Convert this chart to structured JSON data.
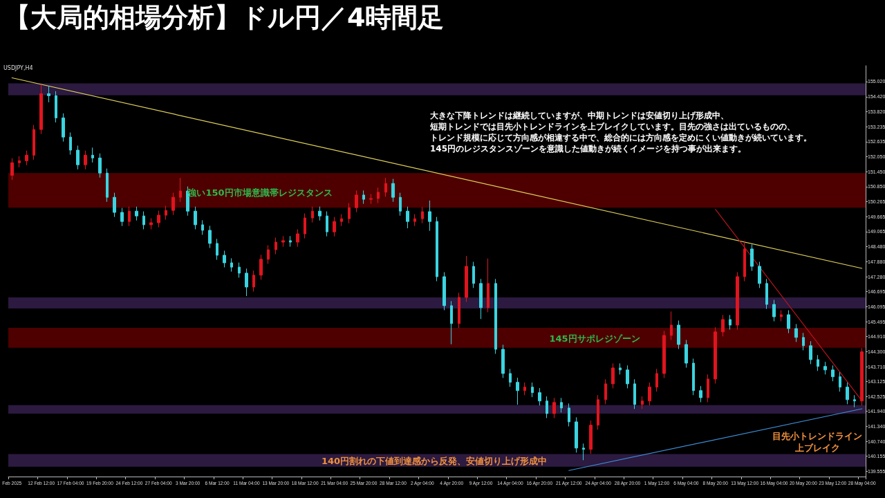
{
  "chart_data": {
    "type": "candlestick",
    "title": "【大局的相場分析】ドル円／4時間足",
    "categories": [
      "Feb 2025",
      null,
      null,
      null,
      "12 Feb 12:00",
      null,
      null,
      null,
      "17 Feb 04:00",
      null,
      null,
      null,
      "19 Feb 20:00",
      null,
      null,
      null,
      "24 Feb 12:00",
      null,
      null,
      null,
      "27 Feb 04:00",
      null,
      null,
      null,
      "3 Mar 20:00",
      null,
      null,
      null,
      "6 Mar 12:00",
      null,
      null,
      null,
      "11 Mar 04:00",
      null,
      null,
      null,
      "13 Mar 20:00",
      null,
      null,
      null,
      "18 Mar 12:00",
      null,
      null,
      null,
      "21 Mar 04:00",
      null,
      null,
      null,
      "25 Mar 20:00",
      null,
      null,
      null,
      "28 Mar 12:00",
      null,
      null,
      null,
      "2 Apr 04:00",
      null,
      null,
      null,
      "4 Apr 20:00",
      null,
      null,
      null,
      "9 Apr 12:00",
      null,
      null,
      null,
      "14 Apr 04:00",
      null,
      null,
      null,
      "16 Apr 20:00",
      null,
      null,
      null,
      "21 Apr 12:00",
      null,
      null,
      null,
      "24 Apr 04:00",
      null,
      null,
      null,
      "28 Apr 20:00",
      null,
      null,
      null,
      "1 May 12:00",
      null,
      null,
      null,
      "6 May 04:00",
      null,
      null,
      null,
      "8 May 20:00",
      null,
      null,
      null,
      "13 May 12:00",
      null,
      null,
      null,
      "16 May 04:00",
      null,
      null,
      null,
      "20 May 20:00",
      null,
      null,
      null,
      "23 May 12:00",
      null,
      null,
      null,
      "28 May 04:00"
    ],
    "ohlc": [
      [
        151.3,
        151.98,
        151.12,
        151.8
      ],
      [
        151.8,
        152.06,
        151.62,
        151.88
      ],
      [
        151.88,
        152.28,
        151.7,
        152.1
      ],
      [
        152.1,
        153.3,
        151.92,
        153.12
      ],
      [
        153.12,
        154.9,
        152.94,
        154.54
      ],
      [
        154.54,
        154.85,
        154.2,
        154.46
      ],
      [
        154.46,
        154.64,
        153.4,
        153.58
      ],
      [
        153.58,
        153.76,
        152.64,
        152.82
      ],
      [
        152.82,
        153.0,
        152.12,
        152.3
      ],
      [
        152.3,
        152.48,
        151.54,
        151.72
      ],
      [
        151.72,
        152.28,
        151.54,
        152.1
      ],
      [
        152.1,
        152.4,
        151.81,
        151.99
      ],
      [
        151.99,
        152.17,
        151.21,
        151.39
      ],
      [
        151.39,
        151.57,
        150.25,
        150.43
      ],
      [
        150.43,
        150.61,
        149.65,
        149.83
      ],
      [
        149.83,
        150.01,
        149.29,
        149.47
      ],
      [
        149.47,
        150.06,
        149.29,
        149.88
      ],
      [
        149.88,
        150.06,
        149.51,
        149.69
      ],
      [
        149.69,
        149.87,
        149.16,
        149.34
      ],
      [
        149.34,
        149.6,
        149.16,
        149.42
      ],
      [
        149.42,
        149.9,
        149.24,
        149.72
      ],
      [
        149.72,
        150.09,
        149.54,
        149.91
      ],
      [
        149.91,
        150.61,
        149.73,
        150.43
      ],
      [
        150.43,
        151.2,
        150.25,
        150.68
      ],
      [
        150.68,
        150.86,
        149.7,
        149.88
      ],
      [
        149.88,
        150.06,
        149.16,
        149.34
      ],
      [
        149.34,
        149.52,
        148.94,
        149.12
      ],
      [
        149.12,
        149.3,
        148.42,
        148.6
      ],
      [
        148.6,
        148.78,
        147.95,
        148.13
      ],
      [
        148.13,
        148.31,
        147.65,
        147.83
      ],
      [
        147.83,
        148.01,
        147.48,
        147.66
      ],
      [
        147.66,
        147.84,
        147.24,
        147.42
      ],
      [
        147.42,
        147.6,
        146.51,
        146.87
      ],
      [
        146.87,
        147.52,
        146.69,
        147.34
      ],
      [
        147.34,
        148.15,
        147.16,
        147.97
      ],
      [
        147.97,
        148.53,
        147.79,
        148.35
      ],
      [
        148.35,
        148.83,
        148.17,
        148.65
      ],
      [
        148.65,
        148.89,
        148.47,
        148.71
      ],
      [
        148.71,
        148.89,
        148.47,
        148.65
      ],
      [
        148.65,
        149.16,
        148.47,
        148.98
      ],
      [
        148.98,
        149.79,
        148.8,
        149.61
      ],
      [
        149.61,
        150.06,
        149.43,
        149.88
      ],
      [
        149.88,
        150.06,
        149.51,
        149.69
      ],
      [
        149.69,
        149.87,
        148.88,
        149.06
      ],
      [
        149.06,
        149.65,
        148.88,
        149.47
      ],
      [
        149.47,
        149.76,
        149.29,
        149.58
      ],
      [
        149.58,
        150.2,
        149.4,
        150.02
      ],
      [
        150.02,
        150.7,
        149.84,
        150.52
      ],
      [
        150.52,
        150.7,
        150.17,
        150.35
      ],
      [
        150.35,
        150.56,
        150.17,
        150.38
      ],
      [
        150.38,
        150.81,
        150.2,
        150.63
      ],
      [
        150.63,
        151.2,
        150.45,
        150.98
      ],
      [
        150.98,
        151.16,
        150.25,
        150.43
      ],
      [
        150.43,
        150.61,
        149.7,
        149.88
      ],
      [
        149.88,
        150.06,
        149.2,
        149.47
      ],
      [
        149.47,
        149.76,
        149.29,
        149.58
      ],
      [
        149.58,
        150.04,
        149.4,
        149.86
      ],
      [
        149.86,
        150.3,
        149.1,
        149.47
      ],
      [
        149.47,
        149.65,
        147.1,
        147.28
      ],
      [
        147.28,
        147.46,
        145.95,
        146.13
      ],
      [
        146.13,
        146.31,
        144.6,
        145.42
      ],
      [
        145.42,
        146.64,
        145.24,
        146.46
      ],
      [
        146.46,
        148.1,
        146.28,
        147.69
      ],
      [
        147.69,
        147.87,
        146.83,
        147.01
      ],
      [
        147.01,
        147.19,
        145.6,
        146.05
      ],
      [
        146.05,
        148.0,
        145.87,
        147.01
      ],
      [
        147.01,
        147.19,
        144.22,
        144.4
      ],
      [
        144.4,
        144.58,
        143.26,
        143.44
      ],
      [
        143.44,
        143.62,
        142.91,
        143.09
      ],
      [
        143.09,
        143.27,
        142.2,
        142.76
      ],
      [
        142.76,
        143.08,
        142.58,
        142.9
      ],
      [
        142.9,
        143.08,
        142.5,
        142.68
      ],
      [
        142.68,
        142.86,
        142.17,
        142.35
      ],
      [
        142.35,
        142.53,
        141.67,
        141.85
      ],
      [
        141.85,
        142.47,
        141.67,
        142.29
      ],
      [
        142.29,
        142.47,
        141.89,
        142.07
      ],
      [
        142.07,
        142.25,
        141.34,
        141.52
      ],
      [
        141.52,
        141.7,
        140.3,
        140.48
      ],
      [
        140.48,
        140.66,
        140.0,
        140.43
      ],
      [
        140.43,
        141.57,
        140.25,
        141.39
      ],
      [
        141.39,
        142.58,
        141.21,
        142.4
      ],
      [
        142.4,
        143.21,
        142.22,
        143.03
      ],
      [
        143.03,
        143.84,
        142.85,
        143.66
      ],
      [
        143.66,
        143.84,
        143.4,
        143.58
      ],
      [
        143.58,
        143.76,
        142.85,
        143.03
      ],
      [
        143.03,
        143.21,
        142.03,
        142.21
      ],
      [
        142.21,
        142.53,
        142.03,
        142.35
      ],
      [
        142.35,
        143.08,
        142.17,
        142.9
      ],
      [
        142.9,
        143.62,
        142.72,
        143.44
      ],
      [
        143.44,
        145.13,
        143.26,
        144.95
      ],
      [
        144.95,
        145.9,
        144.77,
        145.36
      ],
      [
        145.36,
        145.54,
        144.41,
        144.59
      ],
      [
        144.59,
        144.77,
        143.67,
        143.85
      ],
      [
        143.85,
        144.03,
        142.58,
        142.76
      ],
      [
        142.76,
        142.94,
        142.3,
        142.48
      ],
      [
        142.48,
        143.4,
        142.3,
        143.22
      ],
      [
        143.22,
        145.27,
        143.04,
        145.09
      ],
      [
        145.09,
        145.76,
        144.91,
        145.58
      ],
      [
        145.58,
        145.76,
        145.18,
        145.36
      ],
      [
        145.36,
        147.46,
        145.18,
        147.28
      ],
      [
        147.28,
        148.7,
        147.1,
        148.38
      ],
      [
        148.38,
        148.56,
        147.51,
        147.69
      ],
      [
        147.69,
        147.87,
        146.83,
        147.01
      ],
      [
        147.01,
        147.19,
        146.0,
        146.18
      ],
      [
        146.18,
        146.36,
        145.51,
        145.69
      ],
      [
        145.69,
        145.95,
        145.51,
        145.77
      ],
      [
        145.77,
        145.95,
        145.04,
        145.22
      ],
      [
        145.22,
        145.4,
        144.69,
        144.87
      ],
      [
        144.87,
        145.05,
        144.36,
        144.54
      ],
      [
        144.54,
        144.72,
        143.81,
        143.99
      ],
      [
        143.99,
        144.17,
        143.54,
        143.72
      ],
      [
        143.72,
        143.9,
        143.4,
        143.58
      ],
      [
        143.58,
        143.76,
        143.13,
        143.31
      ],
      [
        143.31,
        143.49,
        142.72,
        142.9
      ],
      [
        142.9,
        143.08,
        142.22,
        142.4
      ],
      [
        142.4,
        142.58,
        142.1,
        142.35
      ],
      [
        142.35,
        144.45,
        142.17,
        144.3
      ]
    ],
    "colors": [
      "#e0141e",
      "#e0141e",
      "#e0141e",
      "#e0141e",
      "#e0141e",
      "#3ad4e0",
      "#3ad4e0",
      "#3ad4e0",
      "#3ad4e0",
      "#3ad4e0",
      "#e0141e",
      "#3ad4e0",
      "#3ad4e0",
      "#3ad4e0",
      "#3ad4e0",
      "#3ad4e0",
      "#e0141e",
      "#3ad4e0",
      "#3ad4e0",
      "#e0141e",
      "#e0141e",
      "#e0141e",
      "#e0141e",
      "#e0141e",
      "#3ad4e0",
      "#3ad4e0",
      "#3ad4e0",
      "#3ad4e0",
      "#3ad4e0",
      "#3ad4e0",
      "#3ad4e0",
      "#3ad4e0",
      "#3ad4e0",
      "#e0141e",
      "#e0141e",
      "#e0141e",
      "#e0141e",
      "#e0141e",
      "#3ad4e0",
      "#e0141e",
      "#e0141e",
      "#e0141e",
      "#3ad4e0",
      "#3ad4e0",
      "#e0141e",
      "#e0141e",
      "#e0141e",
      "#e0141e",
      "#3ad4e0",
      "#e0141e",
      "#e0141e",
      "#e0141e",
      "#3ad4e0",
      "#3ad4e0",
      "#3ad4e0",
      "#e0141e",
      "#e0141e",
      "#3ad4e0",
      "#3ad4e0",
      "#3ad4e0",
      "#3ad4e0",
      "#e0141e",
      "#e0141e",
      "#3ad4e0",
      "#3ad4e0",
      "#e0141e",
      "#3ad4e0",
      "#3ad4e0",
      "#3ad4e0",
      "#3ad4e0",
      "#e0141e",
      "#3ad4e0",
      "#3ad4e0",
      "#3ad4e0",
      "#e0141e",
      "#3ad4e0",
      "#3ad4e0",
      "#3ad4e0",
      "#3ad4e0",
      "#e0141e",
      "#e0141e",
      "#e0141e",
      "#e0141e",
      "#3ad4e0",
      "#3ad4e0",
      "#3ad4e0",
      "#e0141e",
      "#e0141e",
      "#e0141e",
      "#e0141e",
      "#e0141e",
      "#3ad4e0",
      "#3ad4e0",
      "#3ad4e0",
      "#3ad4e0",
      "#e0141e",
      "#e0141e",
      "#e0141e",
      "#3ad4e0",
      "#e0141e",
      "#e0141e",
      "#3ad4e0",
      "#3ad4e0",
      "#3ad4e0",
      "#3ad4e0",
      "#e0141e",
      "#3ad4e0",
      "#3ad4e0",
      "#3ad4e0",
      "#3ad4e0",
      "#3ad4e0",
      "#3ad4e0",
      "#3ad4e0",
      "#3ad4e0",
      "#3ad4e0",
      "#3ad4e0",
      "#e0141e"
    ],
    "series": [
      {
        "type": "line",
        "color": "#e2d35a",
        "x": [
          "Feb 2025",
          "28 May 04:00"
        ],
        "values": [
          155.17,
          147.61
        ]
      },
      {
        "type": "line",
        "color": "#b8141e",
        "x": [
          "8 May 20:00",
          "28 May 04:00"
        ],
        "values": [
          149.95,
          142.35
        ]
      },
      {
        "type": "line",
        "color": "#3c8fd8",
        "x": [
          "21 Apr 12:00",
          "28 May 04:00"
        ],
        "values": [
          139.59,
          142.04
        ]
      }
    ],
    "bands": [
      {
        "axis": "y",
        "from": 154.48,
        "to": 154.95,
        "color": "#2c1a40"
      },
      {
        "axis": "y",
        "from": 150.02,
        "to": 151.39,
        "color": "#4e0000"
      },
      {
        "axis": "y",
        "from": 146.02,
        "to": 146.46,
        "color": "#2c1a40"
      },
      {
        "axis": "y",
        "from": 144.46,
        "to": 145.25,
        "color": "#4e0000"
      },
      {
        "axis": "y",
        "from": 141.85,
        "to": 142.18,
        "color": "#2c1a40"
      },
      {
        "axis": "y",
        "from": 139.74,
        "to": 140.24,
        "color": "#2c1a40"
      }
    ],
    "ylim": [
      139.35,
      155.65
    ],
    "yticks": [
      {
        "value": 155.02,
        "label": "155.020"
      },
      {
        "value": 154.42,
        "label": "154.420"
      },
      {
        "value": 153.82,
        "label": "153.820"
      },
      {
        "value": 153.235,
        "label": "153.235"
      },
      {
        "value": 152.635,
        "label": "152.635"
      },
      {
        "value": 152.05,
        "label": "152.050"
      },
      {
        "value": 151.45,
        "label": "151.450"
      },
      {
        "value": 150.85,
        "label": "150.850"
      },
      {
        "value": 150.265,
        "label": "150.265"
      },
      {
        "value": 149.665,
        "label": "149.665"
      },
      {
        "value": 149.065,
        "label": "149.065"
      },
      {
        "value": 148.48,
        "label": "148.480"
      },
      {
        "value": 147.88,
        "label": "147.880"
      },
      {
        "value": 147.28,
        "label": "147.280"
      },
      {
        "value": 146.695,
        "label": "146.695"
      },
      {
        "value": 146.095,
        "label": "146.095"
      },
      {
        "value": 145.495,
        "label": "145.495"
      },
      {
        "value": 144.91,
        "label": "144.910"
      },
      {
        "value": 144.3,
        "label": "144.300"
      },
      {
        "value": 143.71,
        "label": "143.710"
      },
      {
        "value": 143.125,
        "label": "143.125"
      },
      {
        "value": 142.525,
        "label": "142.525"
      },
      {
        "value": 141.94,
        "label": "141.940"
      },
      {
        "value": 141.34,
        "label": "141.340"
      },
      {
        "value": 140.74,
        "label": "140.740"
      },
      {
        "value": 140.155,
        "label": "140.155"
      },
      {
        "value": 139.555,
        "label": "139.555"
      }
    ],
    "grid": false,
    "annotations": [
      "USDJPY,H4",
      "大きな下降トレンドは継続していますが、中期トレンドは安値切り上げ形成中、",
      "短期トレンドでは目先小トレンドラインを上ブレイクしています。目先の強さは出ているものの、",
      "トレンド規模に応じて方向感が相違する中で、総合的には方向感を定めにくい値動きが続いています。",
      "145円のレジスタンスゾーンを意識した値動きが続くイメージを持つ事が出来ます。",
      "強い150円市場意識帯レジスタンス",
      "145円サポレジゾーン",
      "140円割れの下値到達感から反発、安値切り上げ形成中",
      "目先小トレンドライン",
      "上ブレイク"
    ]
  }
}
